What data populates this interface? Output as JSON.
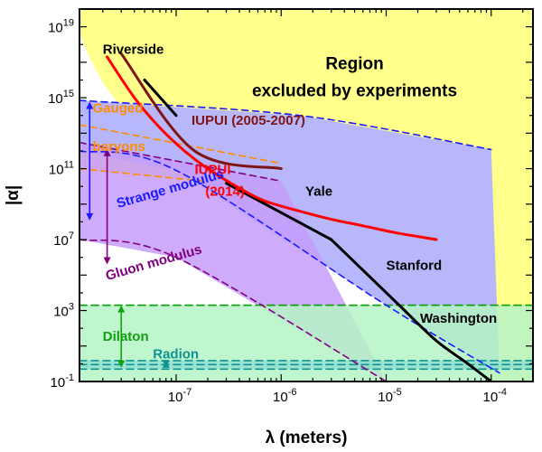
{
  "chart_data": {
    "type": "line",
    "xlabel": "λ (meters)",
    "ylabel": "|α|",
    "xscale": "log",
    "yscale": "log",
    "xlim": [
      1.2e-08,
      0.00025
    ],
    "ylim": [
      0.1,
      1e+20
    ],
    "x_tick_labels": [
      {
        "value": 1e-07,
        "label": "10",
        "exp": "-7"
      },
      {
        "value": 1e-06,
        "label": "10",
        "exp": "-6"
      },
      {
        "value": 1e-05,
        "label": "10",
        "exp": "-5"
      },
      {
        "value": 0.0001,
        "label": "10",
        "exp": "-4"
      }
    ],
    "y_tick_labels": [
      {
        "value": 0.1,
        "label": "10",
        "exp": "-1"
      },
      {
        "value": 1000.0,
        "label": "10",
        "exp": "3"
      },
      {
        "value": 10000000.0,
        "label": "10",
        "exp": "7"
      },
      {
        "value": 100000000000.0,
        "label": "10",
        "exp": "11"
      },
      {
        "value": 1000000000000000.0,
        "label": "10",
        "exp": "15"
      },
      {
        "value": 1e+19,
        "label": "10",
        "exp": "19"
      }
    ],
    "grid": false,
    "colors": {
      "excluded": "#ffff8c",
      "blank": "#ffffff",
      "gauged": "#ffd9a8",
      "strange": "#b3b3ff",
      "gluon": "#c59cfa",
      "dilaton": "#b5f5c5",
      "radion": "#80d9d0",
      "constraint": "#000000",
      "riverside": "#000000",
      "iupui_old": "#7f1414",
      "iupui_new": "#ff0000",
      "gauged_line": "#ff8c00",
      "strange_line": "#1a1aff",
      "gluon_line": "#800080",
      "dilaton_line": "#12a012",
      "radion_line": "#0d9393"
    },
    "excluded_boundary": [
      [
        1.2e-08,
        4e+18
      ],
      [
        1.5e-08,
        1.8e+17
      ],
      [
        2e-08,
        7000000000000000.0
      ],
      [
        3e-08,
        300000000000000.0
      ],
      [
        5e-08,
        12000000000000.0
      ],
      [
        1e-07,
        500000000000.0
      ],
      [
        2e-07,
        30000000000.0
      ],
      [
        3e-07,
        5000000000.0
      ],
      [
        5e-07,
        700000000.0
      ],
      [
        1e-06,
        60000000.0
      ],
      [
        2e-06,
        5000000.0
      ],
      [
        3e-06,
        1000000.0
      ],
      [
        5e-06,
        150000.0
      ],
      [
        1e-05,
        12000.0
      ],
      [
        1.6e-05,
        1300.0
      ],
      [
        2e-05,
        400.0
      ],
      [
        3e-05,
        60.0
      ],
      [
        5e-05,
        5
      ],
      [
        8e-05,
        0.6
      ],
      [
        0.0001,
        0.1
      ]
    ],
    "series": [
      {
        "id": "yale",
        "points": [
          [
            3e-07,
            15000000000.0
          ],
          [
            3e-06,
            10000000.0
          ]
        ]
      },
      {
        "id": "stanford",
        "points": [
          [
            3e-06,
            10000000.0
          ],
          [
            1.5e-05,
            1000.0
          ]
        ]
      },
      {
        "id": "washington",
        "points": [
          [
            1.5e-05,
            1000.0
          ],
          [
            3e-05,
            20.0
          ],
          [
            6e-05,
            1
          ],
          [
            0.0001,
            0.1
          ]
        ]
      },
      {
        "id": "riverside",
        "points": [
          [
            5e-08,
            1e+16
          ],
          [
            1e-07,
            100000000000000.0
          ]
        ]
      },
      {
        "id": "iupui_old",
        "points": [
          [
            3e-08,
            3e+17
          ],
          [
            1.5e-07,
            1000000000000.0
          ],
          [
            1e-06,
            100000000000.0
          ]
        ]
      },
      {
        "id": "iupui_new",
        "points": [
          [
            2.2e-08,
            2e+17
          ],
          [
            4e-08,
            1000000000000000.0
          ],
          [
            7e-08,
            20000000000000.0
          ],
          [
            1.2e-07,
            1000000000000.0
          ],
          [
            2e-07,
            100000000000.0
          ],
          [
            4e-07,
            8000000000.0
          ],
          [
            7e-07,
            1500000000.0
          ],
          [
            1.5e-06,
            400000000.0
          ],
          [
            3e-06,
            140000000.0
          ],
          [
            6e-06,
            60000000.0
          ],
          [
            1.2e-05,
            25000000.0
          ],
          [
            2e-05,
            15000000.0
          ],
          [
            3e-05,
            10000000.0
          ]
        ]
      },
      {
        "id": "strange_upper",
        "points": [
          [
            1.2e-08,
            700000000000000.0
          ],
          [
            1.5e-06,
            100000000000000.0
          ],
          [
            0.0001,
            1200000000000.0
          ]
        ]
      },
      {
        "id": "strange_lower",
        "points": [
          [
            1.2e-08,
            1000000000000.0
          ],
          [
            1e-07,
            80000000000.0
          ],
          [
            1e-05,
            2000.0
          ],
          [
            0.00012,
            0.3
          ]
        ]
      },
      {
        "id": "gauged_upper",
        "points": [
          [
            1.2e-08,
            30000000000000.0
          ],
          [
            1e-06,
            200000000000.0
          ]
        ]
      },
      {
        "id": "gauged_lower",
        "points": [
          [
            1.2e-08,
            100000000000.0
          ],
          [
            1.8e-07,
            20000000000.0
          ]
        ]
      },
      {
        "id": "gluon_upper",
        "points": [
          [
            1.2e-08,
            3000000000000.0
          ],
          [
            1e-06,
            20000000000.0
          ]
        ]
      },
      {
        "id": "gluon_lower",
        "points": [
          [
            1.2e-08,
            10000000.0
          ],
          [
            1e-07,
            1000000.0
          ],
          [
            1e-05,
            0.1
          ]
        ]
      },
      {
        "id": "dilaton_top",
        "points": [
          [
            1.2e-08,
            2000.0
          ],
          [
            0.00025,
            2000.0
          ]
        ]
      },
      {
        "id": "radion_top",
        "points": [
          [
            1.2e-08,
            1.5
          ],
          [
            0.00025,
            1.5
          ]
        ]
      },
      {
        "id": "radion_mid",
        "points": [
          [
            1.2e-08,
            0.9
          ],
          [
            0.00025,
            0.9
          ]
        ]
      },
      {
        "id": "radion_low",
        "points": [
          [
            1.2e-08,
            0.5
          ],
          [
            0.00025,
            0.5
          ]
        ]
      }
    ],
    "annotations": [
      {
        "id": "region1",
        "text": "Region",
        "x": 5e-06,
        "y": 4e+16,
        "anchor": "middle"
      },
      {
        "id": "region2",
        "text": "excluded by experiments",
        "x": 5e-06,
        "y": 1200000000000000.0,
        "anchor": "middle"
      },
      {
        "id": "riverside",
        "text": "Riverside",
        "x": 2e-08,
        "y": 3e+17
      },
      {
        "id": "iupui_old",
        "text": "IUPUI (2005-2007)",
        "x": 1.4e-07,
        "y": 30000000000000.0
      },
      {
        "id": "gauged1",
        "text": "Gauged",
        "x": 1.6e-08,
        "y": 150000000000000.0
      },
      {
        "id": "gauged2",
        "text": "baryons",
        "x": 1.6e-08,
        "y": 1000000000000.0
      },
      {
        "id": "iupui_new1",
        "text": "IUPUI",
        "x": 1.5e-07,
        "y": 50000000000.0
      },
      {
        "id": "iupui_new2",
        "text": "(2014)",
        "x": 1.9e-07,
        "y": 3000000000.0
      },
      {
        "id": "yale",
        "text": "Yale",
        "x": 1.7e-06,
        "y": 3000000000.0
      },
      {
        "id": "strange",
        "text": "Strange modulus",
        "x": 2.8e-08,
        "y": 600000000.0
      },
      {
        "id": "stanford",
        "text": "Stanford",
        "x": 1e-05,
        "y": 200000.0
      },
      {
        "id": "gluon",
        "text": "Gluon modulus",
        "x": 2.2e-08,
        "y": 50000.0
      },
      {
        "id": "washington",
        "text": "Washington",
        "x": 2.1e-05,
        "y": 200.0
      },
      {
        "id": "dilaton",
        "text": "Dilaton",
        "x": 2e-08,
        "y": 20.0
      },
      {
        "id": "radion",
        "text": "Radion",
        "x": 6e-08,
        "y": 2
      }
    ]
  }
}
